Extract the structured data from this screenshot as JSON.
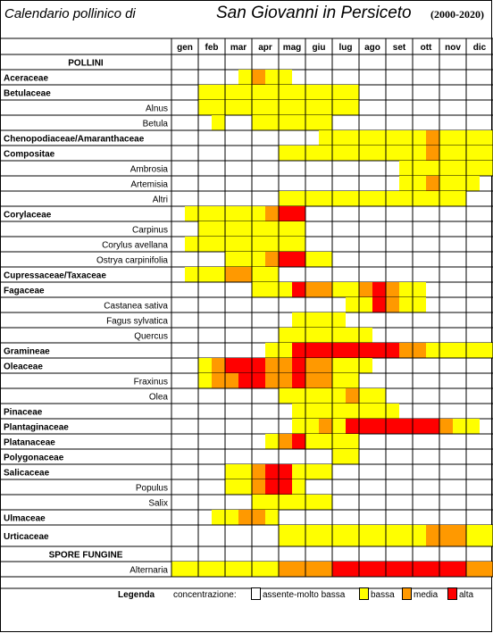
{
  "title": {
    "left": "Calendario pollinico di",
    "right": "San Giovanni in Persiceto",
    "years": "(2000-2020)"
  },
  "colors": {
    "none": "#ffffff",
    "low": "#ffff00",
    "medium": "#ff9900",
    "high": "#ff0000"
  },
  "chart_data": {
    "type": "heatmap",
    "months": [
      "gen",
      "feb",
      "mar",
      "apr",
      "mag",
      "giu",
      "lug",
      "ago",
      "set",
      "ott",
      "nov",
      "dic"
    ],
    "half_months_per_month": 2,
    "value_scale": {
      "0": "assente-molto bassa",
      "1": "bassa",
      "2": "media",
      "3": "alta"
    },
    "rows": [
      {
        "label": "POLLINI",
        "section": true,
        "values": []
      },
      {
        "label": "Aceraceae",
        "family": true,
        "values": [
          0,
          0,
          0,
          0,
          0,
          1,
          2,
          1,
          1,
          0,
          0,
          0,
          0,
          0,
          0,
          0,
          0,
          0,
          0,
          0,
          0,
          0,
          0,
          0
        ]
      },
      {
        "label": "Betulaceae",
        "family": true,
        "values": [
          0,
          0,
          1,
          1,
          1,
          1,
          1,
          1,
          1,
          1,
          1,
          1,
          1,
          1,
          0,
          0,
          0,
          0,
          0,
          0,
          0,
          0,
          0,
          0
        ]
      },
      {
        "label": "Alnus",
        "family": false,
        "values": [
          0,
          0,
          1,
          1,
          1,
          1,
          1,
          1,
          1,
          1,
          1,
          1,
          1,
          1,
          0,
          0,
          0,
          0,
          0,
          0,
          0,
          0,
          0,
          0
        ]
      },
      {
        "label": "Betula",
        "family": false,
        "values": [
          0,
          0,
          0,
          1,
          0,
          0,
          1,
          1,
          1,
          1,
          1,
          1,
          0,
          0,
          0,
          0,
          0,
          0,
          0,
          0,
          0,
          0,
          0,
          0
        ]
      },
      {
        "label": "Chenopodiaceae/Amaranthaceae",
        "family": true,
        "values": [
          0,
          0,
          0,
          0,
          0,
          0,
          0,
          0,
          0,
          0,
          0,
          1,
          1,
          1,
          1,
          1,
          1,
          1,
          1,
          2,
          1,
          1,
          1,
          1
        ]
      },
      {
        "label": "Compositae",
        "family": true,
        "values": [
          0,
          0,
          0,
          0,
          0,
          0,
          0,
          0,
          1,
          1,
          1,
          1,
          1,
          1,
          1,
          1,
          1,
          1,
          1,
          2,
          1,
          1,
          1,
          1
        ]
      },
      {
        "label": "Ambrosia",
        "family": false,
        "values": [
          0,
          0,
          0,
          0,
          0,
          0,
          0,
          0,
          0,
          0,
          0,
          0,
          0,
          0,
          0,
          0,
          0,
          1,
          1,
          1,
          1,
          1,
          1,
          1
        ]
      },
      {
        "label": "Artemisia",
        "family": false,
        "values": [
          0,
          0,
          0,
          0,
          0,
          0,
          0,
          0,
          0,
          0,
          0,
          0,
          0,
          0,
          0,
          0,
          0,
          1,
          1,
          2,
          1,
          1,
          1,
          0
        ]
      },
      {
        "label": "Altri",
        "family": false,
        "values": [
          0,
          0,
          0,
          0,
          0,
          0,
          0,
          0,
          1,
          1,
          1,
          1,
          1,
          1,
          1,
          1,
          1,
          1,
          1,
          1,
          1,
          1,
          0,
          0
        ]
      },
      {
        "label": "Corylaceae",
        "family": true,
        "values": [
          0,
          1,
          1,
          1,
          1,
          1,
          1,
          2,
          3,
          3,
          0,
          0,
          0,
          0,
          0,
          0,
          0,
          0,
          0,
          0,
          0,
          0,
          0,
          0
        ]
      },
      {
        "label": "Carpinus",
        "family": false,
        "values": [
          0,
          0,
          1,
          1,
          1,
          1,
          1,
          1,
          1,
          1,
          0,
          0,
          0,
          0,
          0,
          0,
          0,
          0,
          0,
          0,
          0,
          0,
          0,
          0
        ]
      },
      {
        "label": "Corylus avellana",
        "family": false,
        "values": [
          0,
          1,
          1,
          1,
          1,
          1,
          1,
          1,
          1,
          1,
          0,
          0,
          0,
          0,
          0,
          0,
          0,
          0,
          0,
          0,
          0,
          0,
          0,
          0
        ]
      },
      {
        "label": "Ostrya carpinifolia",
        "family": false,
        "values": [
          0,
          0,
          0,
          0,
          1,
          1,
          1,
          2,
          3,
          3,
          1,
          1,
          0,
          0,
          0,
          0,
          0,
          0,
          0,
          0,
          0,
          0,
          0,
          0
        ]
      },
      {
        "label": "Cupressaceae/Taxaceae",
        "family": true,
        "values": [
          0,
          1,
          1,
          1,
          2,
          2,
          1,
          1,
          0,
          0,
          0,
          0,
          0,
          0,
          0,
          0,
          0,
          0,
          0,
          0,
          0,
          0,
          0,
          0
        ]
      },
      {
        "label": "Fagaceae",
        "family": true,
        "values": [
          0,
          0,
          0,
          0,
          0,
          0,
          1,
          1,
          1,
          3,
          2,
          2,
          1,
          1,
          2,
          3,
          2,
          1,
          1,
          0,
          0,
          0,
          0,
          0
        ]
      },
      {
        "label": "Castanea sativa",
        "family": false,
        "values": [
          0,
          0,
          0,
          0,
          0,
          0,
          0,
          0,
          0,
          0,
          0,
          0,
          0,
          1,
          1,
          3,
          2,
          1,
          1,
          0,
          0,
          0,
          0,
          0
        ]
      },
      {
        "label": "Fagus sylvatica",
        "family": false,
        "values": [
          0,
          0,
          0,
          0,
          0,
          0,
          0,
          0,
          0,
          1,
          1,
          1,
          1,
          0,
          0,
          0,
          0,
          0,
          0,
          0,
          0,
          0,
          0,
          0
        ]
      },
      {
        "label": "Quercus",
        "family": false,
        "values": [
          0,
          0,
          0,
          0,
          0,
          0,
          0,
          0,
          1,
          1,
          1,
          1,
          1,
          1,
          1,
          0,
          0,
          0,
          0,
          0,
          0,
          0,
          0,
          0
        ]
      },
      {
        "label": "Gramineae",
        "family": true,
        "values": [
          0,
          0,
          0,
          0,
          0,
          0,
          0,
          1,
          1,
          3,
          3,
          3,
          3,
          3,
          3,
          3,
          3,
          2,
          2,
          1,
          1,
          1,
          1,
          1
        ]
      },
      {
        "label": "Oleaceae",
        "family": true,
        "values": [
          0,
          0,
          1,
          2,
          3,
          3,
          3,
          2,
          2,
          3,
          2,
          2,
          1,
          1,
          1,
          0,
          0,
          0,
          0,
          0,
          0,
          0,
          0,
          0
        ]
      },
      {
        "label": "Fraxinus",
        "family": false,
        "values": [
          0,
          0,
          1,
          2,
          2,
          3,
          3,
          2,
          2,
          3,
          2,
          2,
          1,
          1,
          0,
          0,
          0,
          0,
          0,
          0,
          0,
          0,
          0,
          0
        ]
      },
      {
        "label": "Olea",
        "family": false,
        "values": [
          0,
          0,
          0,
          0,
          0,
          0,
          0,
          0,
          1,
          1,
          1,
          1,
          1,
          2,
          1,
          1,
          0,
          0,
          0,
          0,
          0,
          0,
          0,
          0
        ]
      },
      {
        "label": "Pinaceae",
        "family": true,
        "values": [
          0,
          0,
          0,
          0,
          0,
          0,
          0,
          0,
          0,
          1,
          1,
          1,
          1,
          1,
          1,
          1,
          1,
          0,
          0,
          0,
          0,
          0,
          0,
          0
        ]
      },
      {
        "label": "Plantaginaceae",
        "family": true,
        "values": [
          0,
          0,
          0,
          0,
          0,
          0,
          0,
          0,
          0,
          1,
          1,
          2,
          1,
          3,
          3,
          3,
          3,
          3,
          3,
          3,
          2,
          1,
          1,
          0
        ]
      },
      {
        "label": "Platanaceae",
        "family": true,
        "values": [
          0,
          0,
          0,
          0,
          0,
          0,
          0,
          1,
          2,
          3,
          1,
          1,
          1,
          1,
          0,
          0,
          0,
          0,
          0,
          0,
          0,
          0,
          0,
          0
        ]
      },
      {
        "label": "Polygonaceae",
        "family": true,
        "values": [
          0,
          0,
          0,
          0,
          0,
          0,
          0,
          0,
          0,
          0,
          0,
          0,
          1,
          1,
          0,
          0,
          0,
          0,
          0,
          0,
          0,
          0,
          0,
          0
        ]
      },
      {
        "label": "Salicaceae",
        "family": true,
        "values": [
          0,
          0,
          0,
          0,
          1,
          1,
          2,
          3,
          3,
          1,
          1,
          1,
          0,
          0,
          0,
          0,
          0,
          0,
          0,
          0,
          0,
          0,
          0,
          0
        ]
      },
      {
        "label": "Populus",
        "family": false,
        "values": [
          0,
          0,
          0,
          0,
          1,
          1,
          2,
          3,
          3,
          1,
          0,
          0,
          0,
          0,
          0,
          0,
          0,
          0,
          0,
          0,
          0,
          0,
          0,
          0
        ]
      },
      {
        "label": "Salix",
        "family": false,
        "values": [
          0,
          0,
          0,
          0,
          0,
          0,
          1,
          1,
          1,
          1,
          1,
          1,
          0,
          0,
          0,
          0,
          0,
          0,
          0,
          0,
          0,
          0,
          0,
          0
        ]
      },
      {
        "label": "Ulmaceae",
        "family": true,
        "values": [
          0,
          0,
          0,
          1,
          1,
          2,
          2,
          1,
          0,
          0,
          0,
          0,
          0,
          0,
          0,
          0,
          0,
          0,
          0,
          0,
          0,
          0,
          0,
          0
        ]
      },
      {
        "label": "Urticaceae",
        "family": true,
        "values": [
          0,
          0,
          0,
          0,
          0,
          0,
          0,
          0,
          1,
          1,
          1,
          1,
          1,
          1,
          1,
          1,
          1,
          1,
          1,
          2,
          2,
          2,
          1,
          1
        ]
      },
      {
        "label": "SPORE FUNGINE",
        "section": true,
        "values": []
      },
      {
        "label": "Alternaria",
        "family": false,
        "values": [
          1,
          1,
          1,
          1,
          1,
          1,
          1,
          1,
          2,
          2,
          2,
          2,
          3,
          3,
          3,
          3,
          3,
          3,
          3,
          3,
          3,
          3,
          2,
          2
        ]
      }
    ]
  },
  "legend": {
    "title": "Legenda",
    "label": "concentrazione:",
    "items": [
      {
        "text": "assente-molto bassa",
        "color": "#ffffff"
      },
      {
        "text": "bassa",
        "color": "#ffff00"
      },
      {
        "text": "media",
        "color": "#ff9900"
      },
      {
        "text": "alta",
        "color": "#ff0000"
      }
    ]
  }
}
